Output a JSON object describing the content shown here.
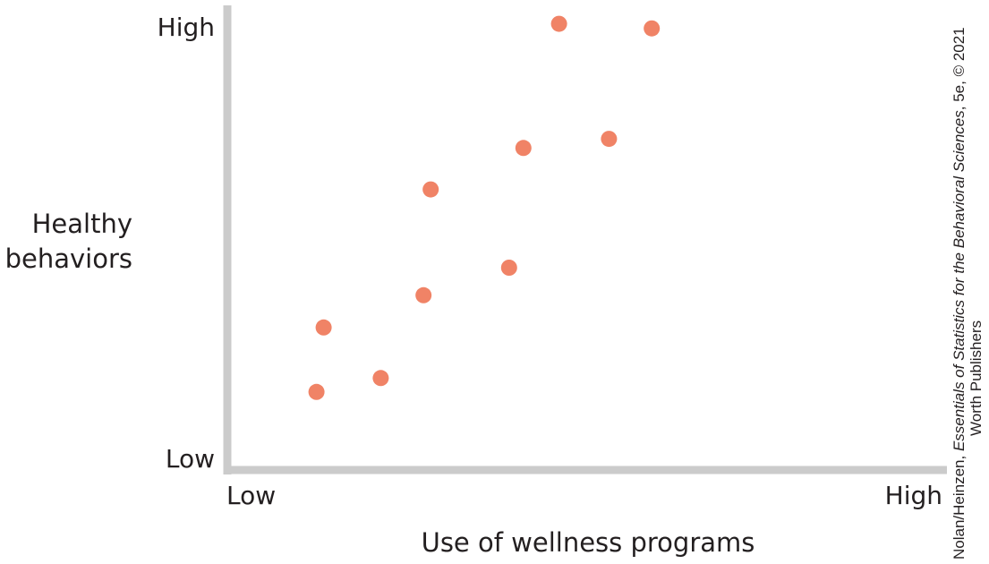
{
  "chart_data": {
    "type": "scatter",
    "xlabel": "Use of wellness programs",
    "ylabel": [
      "Healthy",
      "behaviors"
    ],
    "x_tick_labels": {
      "low": "Low",
      "high": "High"
    },
    "y_tick_labels": {
      "low": "Low",
      "high": "High"
    },
    "xlim": [
      0,
      10
    ],
    "ylim": [
      0,
      10
    ],
    "grid": false,
    "point_color": "#f08366",
    "axis_color": "#cbcbcb",
    "points": [
      {
        "x": 1.2,
        "y": 1.6
      },
      {
        "x": 1.3,
        "y": 3.0
      },
      {
        "x": 2.1,
        "y": 1.9
      },
      {
        "x": 2.7,
        "y": 3.7
      },
      {
        "x": 2.8,
        "y": 6.0
      },
      {
        "x": 3.9,
        "y": 4.3
      },
      {
        "x": 4.1,
        "y": 6.9
      },
      {
        "x": 4.6,
        "y": 9.6
      },
      {
        "x": 5.3,
        "y": 7.1
      },
      {
        "x": 5.9,
        "y": 9.5
      }
    ]
  },
  "credit": {
    "line1_prefix": "Nolan/Heinzen, ",
    "line1_title": "Essentials of Statistics for the Behavioral Sciences",
    "line1_suffix": ", 5e, © 2021",
    "line2": "Worth Publishers"
  }
}
